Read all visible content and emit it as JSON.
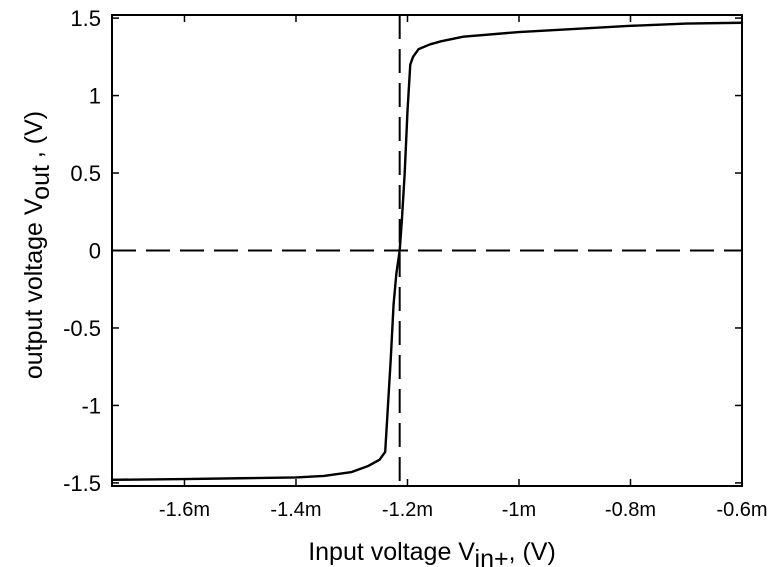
{
  "chart_data": {
    "type": "line",
    "xlabel": {
      "prefix": "Input voltage V",
      "subscript": "in+",
      "suffix": ", (V)"
    },
    "ylabel": {
      "prefix": "output voltage V",
      "subscript": "out",
      "suffix": " , (V)"
    },
    "xlim": [
      -0.00173,
      -0.0006
    ],
    "ylim": [
      -1.52,
      1.52
    ],
    "x_ticks": [
      {
        "value": -0.0016,
        "label": "-1.6m"
      },
      {
        "value": -0.0014,
        "label": "-1.4m"
      },
      {
        "value": -0.0012,
        "label": "-1.2m"
      },
      {
        "value": -0.001,
        "label": "-1m"
      },
      {
        "value": -0.0008,
        "label": "-0.8m"
      },
      {
        "value": -0.0006,
        "label": "-0.6m"
      }
    ],
    "y_ticks": [
      {
        "value": 1.5,
        "label": "1.5"
      },
      {
        "value": 1,
        "label": "1"
      },
      {
        "value": 0.5,
        "label": "0.5"
      },
      {
        "value": 0,
        "label": "0"
      },
      {
        "value": -0.5,
        "label": "-0.5"
      },
      {
        "value": -1,
        "label": "-1"
      },
      {
        "value": -1.5,
        "label": "-1.5"
      }
    ],
    "grid": false,
    "reference_lines": [
      {
        "orientation": "horizontal",
        "value": 0,
        "style": "dashed"
      },
      {
        "orientation": "vertical",
        "value": -0.001214,
        "style": "dashed"
      }
    ],
    "series": [
      {
        "color": "#000000",
        "x": [
          -0.00173,
          -0.0016,
          -0.0015,
          -0.0014,
          -0.00135,
          -0.0013,
          -0.00127,
          -0.00125,
          -0.00124,
          -0.001235,
          -0.00123,
          -0.001225,
          -0.00122,
          -0.001214,
          -0.00121,
          -0.001205,
          -0.0012,
          -0.001195,
          -0.00119,
          -0.00118,
          -0.00116,
          -0.00114,
          -0.0011,
          -0.001,
          -0.0009,
          -0.0008,
          -0.0007,
          -0.0006
        ],
        "y": [
          -1.48,
          -1.475,
          -1.47,
          -1.465,
          -1.455,
          -1.43,
          -1.39,
          -1.35,
          -1.3,
          -1.0,
          -0.7,
          -0.35,
          -0.15,
          0.0,
          0.2,
          0.5,
          0.9,
          1.2,
          1.25,
          1.3,
          1.33,
          1.35,
          1.38,
          1.41,
          1.43,
          1.45,
          1.465,
          1.47
        ]
      }
    ]
  }
}
